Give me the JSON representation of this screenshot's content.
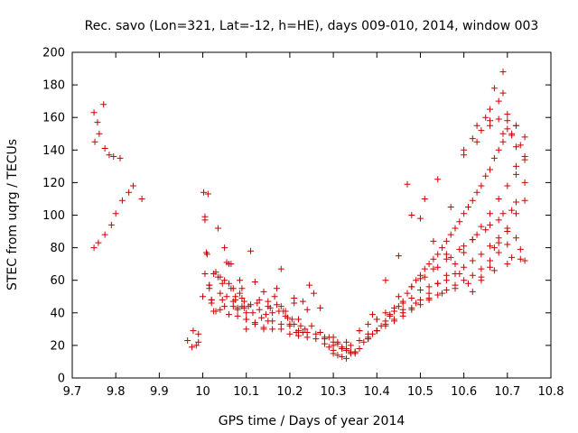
{
  "chart_data": {
    "type": "scatter",
    "title": "Rec. savo (Lon=321, Lat=-12, h=HE), days 009-010, 2014, window 003",
    "xlabel": "GPS time / Days of year 2014",
    "ylabel": "STEC from uqrg / TECUs",
    "xlim": [
      9.7,
      10.8
    ],
    "ylim": [
      0,
      200
    ],
    "xticks": [
      9.7,
      9.8,
      9.9,
      10.0,
      10.1,
      10.2,
      10.3,
      10.4,
      10.5,
      10.6,
      10.7,
      10.8
    ],
    "xtick_labels": [
      "9.7",
      "9.8",
      "9.9",
      "10",
      "10.1",
      "10.2",
      "10.3",
      "10.4",
      "10.5",
      "10.6",
      "10.7",
      "10.8"
    ],
    "yticks": [
      0,
      20,
      40,
      60,
      80,
      100,
      120,
      140,
      160,
      180,
      200
    ],
    "grid": false,
    "marker": "+",
    "color": "#cc0000",
    "x": [
      9.75,
      9.752,
      9.758,
      9.762,
      9.772,
      9.775,
      9.785,
      9.795,
      9.81,
      9.75,
      9.76,
      9.775,
      9.79,
      9.8,
      9.815,
      9.83,
      9.84,
      9.86,
      9.965,
      9.975,
      9.978,
      9.985,
      9.99,
      9.99,
      10.002,
      10.005,
      10.008,
      10.012,
      10.015,
      10.02,
      10.025,
      10.03,
      10.035,
      10.04,
      10.045,
      10.05,
      10.055,
      10.06,
      10.065,
      10.07,
      10.075,
      10.08,
      10.085,
      10.09,
      10.095,
      10.1,
      10.0,
      10.005,
      10.01,
      10.015,
      10.02,
      10.03,
      10.04,
      10.05,
      10.06,
      10.07,
      10.08,
      10.09,
      10.1,
      10.11,
      10.12,
      10.13,
      10.14,
      10.15,
      10.16,
      10.17,
      10.18,
      10.19,
      10.2,
      10.21,
      10.22,
      10.23,
      10.005,
      10.015,
      10.025,
      10.035,
      10.045,
      10.055,
      10.065,
      10.075,
      10.085,
      10.095,
      10.105,
      10.115,
      10.125,
      10.135,
      10.145,
      10.155,
      10.165,
      10.175,
      10.185,
      10.195,
      10.205,
      10.215,
      10.225,
      10.235,
      10.245,
      10.255,
      10.02,
      10.04,
      10.06,
      10.08,
      10.1,
      10.12,
      10.14,
      10.16,
      10.18,
      10.2,
      10.22,
      10.24,
      10.26,
      10.28,
      10.3,
      10.31,
      10.32,
      10.33,
      10.34,
      10.35,
      10.05,
      10.07,
      10.09,
      10.11,
      10.13,
      10.15,
      10.17,
      10.19,
      10.21,
      10.23,
      10.25,
      10.27,
      10.29,
      10.31,
      10.33,
      10.35,
      10.1,
      10.12,
      10.14,
      10.16,
      10.18,
      10.2,
      10.22,
      10.24,
      10.26,
      10.28,
      10.3,
      10.32,
      10.34,
      10.36,
      10.38,
      10.15,
      10.18,
      10.21,
      10.24,
      10.27,
      10.3,
      10.33,
      10.36,
      10.39,
      10.42,
      10.45,
      10.48,
      10.51,
      10.54,
      10.57,
      10.6,
      10.63,
      10.66,
      10.69,
      10.72,
      10.74,
      10.28,
      10.29,
      10.3,
      10.31,
      10.32,
      10.33,
      10.34,
      10.35,
      10.36,
      10.37,
      10.38,
      10.39,
      10.4,
      10.41,
      10.42,
      10.43,
      10.44,
      10.45,
      10.46,
      10.47,
      10.48,
      10.49,
      10.5,
      10.51,
      10.52,
      10.53,
      10.54,
      10.55,
      10.56,
      10.57,
      10.58,
      10.59,
      10.6,
      10.61,
      10.62,
      10.63,
      10.64,
      10.65,
      10.66,
      10.67,
      10.68,
      10.69,
      10.7,
      10.71,
      10.72,
      10.3,
      10.32,
      10.34,
      10.36,
      10.38,
      10.4,
      10.42,
      10.44,
      10.46,
      10.48,
      10.5,
      10.52,
      10.54,
      10.56,
      10.58,
      10.6,
      10.62,
      10.64,
      10.66,
      10.68,
      10.7,
      10.72,
      10.36,
      10.38,
      10.4,
      10.42,
      10.44,
      10.46,
      10.48,
      10.5,
      10.52,
      10.54,
      10.56,
      10.58,
      10.6,
      10.62,
      10.64,
      10.66,
      10.68,
      10.7,
      10.38,
      10.4,
      10.42,
      10.44,
      10.46,
      10.48,
      10.5,
      10.52,
      10.54,
      10.56,
      10.58,
      10.6,
      10.62,
      10.64,
      10.66,
      10.68,
      10.7,
      10.72,
      10.74,
      10.4,
      10.43,
      10.46,
      10.49,
      10.52,
      10.55,
      10.58,
      10.61,
      10.64,
      10.67,
      10.7,
      10.73,
      10.45,
      10.48,
      10.51,
      10.54,
      10.57,
      10.6,
      10.63,
      10.66,
      10.69,
      10.72,
      10.5,
      10.53,
      10.56,
      10.59,
      10.62,
      10.65,
      10.68,
      10.71,
      10.74,
      10.47,
      10.5,
      10.53,
      10.56,
      10.59,
      10.62,
      10.64,
      10.66,
      10.68,
      10.7,
      10.72,
      10.74,
      10.6,
      10.62,
      10.64,
      10.66,
      10.68,
      10.7,
      10.72,
      10.74,
      10.63,
      10.65,
      10.67,
      10.69,
      10.71,
      10.73,
      10.66,
      10.68,
      10.7,
      10.72,
      10.74,
      10.69,
      10.71,
      10.67,
      10.73
    ],
    "y": [
      163,
      145,
      157,
      150,
      168,
      141,
      137,
      136,
      135,
      80,
      83,
      88,
      94,
      101,
      109,
      114,
      118,
      110,
      23,
      19,
      29,
      20,
      27,
      22,
      114,
      97,
      77,
      113,
      55,
      48,
      41,
      65,
      92,
      62,
      48,
      80,
      71,
      58,
      70,
      44,
      50,
      42,
      60,
      55,
      47,
      40,
      50,
      99,
      76,
      57,
      46,
      41,
      52,
      44,
      39,
      47,
      38,
      44,
      36,
      78,
      59,
      42,
      53,
      47,
      40,
      55,
      44,
      38,
      33,
      49,
      36,
      47,
      64,
      57,
      64,
      62,
      58,
      50,
      55,
      48,
      52,
      43,
      44,
      40,
      46,
      37,
      39,
      43,
      50,
      41,
      41,
      37,
      36,
      28,
      32,
      30,
      57,
      52,
      48,
      42,
      70,
      43,
      36,
      34,
      31,
      30,
      30,
      27,
      26,
      25,
      24,
      21,
      20,
      22,
      18,
      17,
      16,
      15,
      60,
      55,
      49,
      45,
      48,
      44,
      45,
      41,
      33,
      28,
      32,
      28,
      25,
      21,
      18,
      16,
      30,
      33,
      30,
      35,
      33,
      32,
      29,
      28,
      27,
      25,
      22,
      19,
      16,
      18,
      24,
      35,
      67,
      46,
      42,
      43,
      25,
      22,
      29,
      39,
      60,
      75,
      100,
      110,
      122,
      105,
      137,
      145,
      158,
      150,
      155,
      148,
      24,
      19,
      17,
      14,
      13,
      12,
      15,
      16,
      18,
      22,
      24,
      27,
      29,
      32,
      35,
      38,
      41,
      44,
      47,
      52,
      56,
      60,
      63,
      67,
      70,
      73,
      76,
      80,
      84,
      88,
      92,
      96,
      101,
      105,
      109,
      114,
      118,
      124,
      128,
      135,
      140,
      145,
      153,
      150,
      125,
      15,
      18,
      20,
      23,
      25,
      29,
      33,
      36,
      40,
      43,
      48,
      52,
      58,
      63,
      70,
      77,
      85,
      93,
      101,
      110,
      118,
      130,
      29,
      33,
      36,
      40,
      43,
      46,
      49,
      54,
      56,
      58,
      60,
      64,
      68,
      72,
      76,
      81,
      86,
      90,
      27,
      29,
      32,
      35,
      38,
      42,
      45,
      48,
      51,
      54,
      57,
      60,
      63,
      67,
      72,
      77,
      82,
      86,
      72,
      36,
      39,
      42,
      46,
      49,
      52,
      55,
      58,
      62,
      66,
      70,
      73,
      50,
      56,
      62,
      68,
      74,
      81,
      88,
      94,
      101,
      108,
      61,
      67,
      73,
      79,
      85,
      91,
      97,
      103,
      109,
      119,
      98,
      84,
      76,
      64,
      53,
      60,
      68,
      83,
      92,
      101,
      120,
      140,
      147,
      152,
      155,
      159,
      162,
      142,
      134,
      155,
      160,
      178,
      175,
      149,
      143,
      165,
      170,
      158,
      155,
      136,
      188,
      74,
      80,
      79
    ]
  }
}
